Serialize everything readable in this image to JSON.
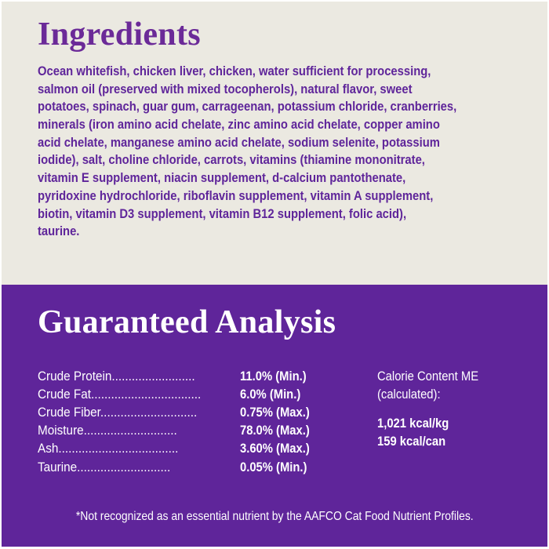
{
  "colors": {
    "top_background": "#ebe9e1",
    "bottom_background": "#5f259a",
    "heading_purple": "#6b2a98",
    "text_white": "#ffffff"
  },
  "ingredients": {
    "title": "Ingredients",
    "lines": [
      "Ocean whitefish, chicken liver, chicken, water sufficient for processing,",
      "salmon oil (preserved with mixed tocopherols), natural flavor, sweet",
      "potatoes, spinach, guar gum, carrageenan, potassium chloride, cranberries,",
      "minerals (iron amino acid chelate, zinc amino acid chelate, copper amino",
      "acid chelate, manganese amino acid chelate, sodium selenite, potassium",
      "iodide), salt, choline chloride, carrots, vitamins (thiamine mononitrate,",
      "vitamin E supplement, niacin supplement, d-calcium pantothenate,",
      "pyridoxine hydrochloride, riboflavin supplement, vitamin A supplement,",
      "biotin, vitamin D3 supplement, vitamin B12 supplement, folic acid),",
      "taurine."
    ]
  },
  "analysis": {
    "title": "Guaranteed Analysis",
    "rows": [
      {
        "label": "Crude  Protein.........................",
        "value": "11.0% (Min.)"
      },
      {
        "label": "Crude Fat.................................",
        "value": "6.0% (Min.)"
      },
      {
        "label": "Crude Fiber.............................",
        "value": "0.75% (Max.)"
      },
      {
        "label": "Moisture............................",
        "value": "78.0% (Max.)"
      },
      {
        "label": "Ash....................................",
        "value": "3.60% (Max.)"
      },
      {
        "label": "Taurine............................",
        "value": "0.05% (Min.)"
      }
    ],
    "calorie": {
      "line1": "Calorie Content ME",
      "line2": "(calculated):",
      "value1": "1,021 kcal/kg",
      "value2": "159 kcal/can"
    },
    "footnote": "*Not recognized as an essential nutrient by the AAFCO Cat Food Nutrient Profiles."
  }
}
